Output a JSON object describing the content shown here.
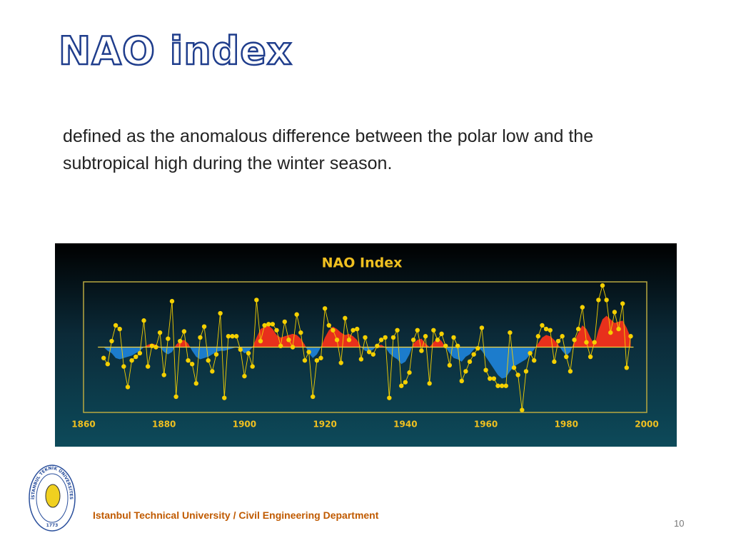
{
  "slide": {
    "title": "NAO index",
    "body": "defined as the anomalous difference between the polar low and the subtropical high during the winter season.",
    "footer": "Istanbul  Technical University  / Civil Engineering Department",
    "page_number": "10",
    "logo": {
      "text": "İSTANBUL TEKNİK ÜNİVERSİTESİ",
      "year": "1773"
    }
  },
  "chart_data": {
    "type": "line",
    "title": "NAO  Index",
    "x": [
      1865,
      1866,
      1867,
      1868,
      1869,
      1870,
      1871,
      1872,
      1873,
      1874,
      1875,
      1876,
      1877,
      1878,
      1879,
      1880,
      1881,
      1882,
      1883,
      1884,
      1885,
      1886,
      1887,
      1888,
      1889,
      1890,
      1891,
      1892,
      1893,
      1894,
      1895,
      1896,
      1897,
      1898,
      1899,
      1900,
      1901,
      1902,
      1903,
      1904,
      1905,
      1906,
      1907,
      1908,
      1909,
      1910,
      1911,
      1912,
      1913,
      1914,
      1915,
      1916,
      1917,
      1918,
      1919,
      1920,
      1921,
      1922,
      1923,
      1924,
      1925,
      1926,
      1927,
      1928,
      1929,
      1930,
      1931,
      1932,
      1933,
      1934,
      1935,
      1936,
      1937,
      1938,
      1939,
      1940,
      1941,
      1942,
      1943,
      1944,
      1945,
      1946,
      1947,
      1948,
      1949,
      1950,
      1951,
      1952,
      1953,
      1954,
      1955,
      1956,
      1957,
      1958,
      1959,
      1960,
      1961,
      1962,
      1963,
      1964,
      1965,
      1966,
      1967,
      1968,
      1969,
      1970,
      1971,
      1972,
      1973,
      1974,
      1975,
      1976,
      1977,
      1978,
      1979,
      1980,
      1981,
      1982,
      1983,
      1984,
      1985,
      1986,
      1987,
      1988,
      1989,
      1990,
      1991,
      1992,
      1993,
      1994,
      1995,
      1996
    ],
    "series": [
      {
        "color": "#f5d000",
        "values": [
          -0.9,
          -1.4,
          0.5,
          1.8,
          1.5,
          -1.6,
          -3.3,
          -1.1,
          -0.8,
          -0.5,
          2.2,
          -1.6,
          0.1,
          0,
          1.2,
          -2.3,
          0.7,
          3.8,
          -4.1,
          0.5,
          1.3,
          -1.1,
          -1.4,
          -3.0,
          0.8,
          1.7,
          -1.1,
          -2.0,
          -0.6,
          2.8,
          -4.2,
          0.9,
          0.9,
          0.9,
          -0.2,
          -2.4,
          -0.5,
          -1.6,
          3.9,
          0.5,
          1.8,
          1.9,
          1.9,
          1.4,
          0.1,
          2.1,
          0.6,
          0,
          2.7,
          1.2,
          -1.1,
          -0.4,
          -4.1,
          -1.1,
          -0.9,
          3.2,
          1.8,
          1.4,
          0.6,
          -1.3,
          2.4,
          0.6,
          1.4,
          1.5,
          -1.0,
          0.8,
          -0.4,
          -0.6,
          0.1,
          0.6,
          0.8,
          -4.2,
          0.8,
          1.4,
          -3.2,
          -2.9,
          -2.1,
          0.6,
          1.4,
          -0.3,
          0.9,
          -3.0,
          1.4,
          0.6,
          1.1,
          0.1,
          -1.5,
          0.8,
          0.1,
          -2.8,
          -2.0,
          -1.2,
          -0.6,
          -0.1,
          1.6,
          -1.9,
          -2.6,
          -2.6,
          -3.2,
          -3.2,
          -3.2,
          1.2,
          -1.7,
          -2.3,
          -5.2,
          -2.0,
          -0.5,
          -1.1,
          0.9,
          1.8,
          1.5,
          1.4,
          -1.2,
          0.5,
          0.9,
          -0.8,
          -2.0,
          0.6,
          1.5,
          3.3,
          0.4,
          -0.8,
          0.4,
          3.9,
          5.1,
          3.9,
          1.2,
          2.9,
          1.5,
          3.6,
          -1.7,
          0.9
        ]
      },
      {
        "color": "#e8301c",
        "negative_color": "#1c7ccc",
        "values": [
          0,
          -0.3,
          -0.5,
          -0.9,
          -1.0,
          -0.9,
          -0.8,
          -0.7,
          -0.5,
          -0.3,
          0,
          0.2,
          0.3,
          0.2,
          0,
          -0.4,
          -0.6,
          -0.4,
          0.2,
          0.5,
          0.6,
          0.3,
          -0.3,
          -0.8,
          -1.0,
          -0.9,
          -0.8,
          -0.6,
          -0.4,
          -0.3,
          -0.3,
          -0.2,
          -0.1,
          0,
          -0.2,
          -0.5,
          -0.4,
          0,
          0.8,
          1.5,
          1.7,
          1.8,
          1.5,
          1.0,
          0.8,
          0.9,
          1.0,
          1.1,
          1.0,
          0.7,
          0.2,
          -0.5,
          -0.9,
          -0.6,
          0,
          0.8,
          1.4,
          1.7,
          1.5,
          1.2,
          1.0,
          1.1,
          0.9,
          0.6,
          0,
          -0.3,
          -0.4,
          -0.2,
          0.1,
          0.2,
          0,
          -0.5,
          -0.8,
          -1.0,
          -1.4,
          -1.2,
          -0.6,
          0.3,
          0.6,
          0.7,
          0.3,
          0,
          0.4,
          0.8,
          0.5,
          0,
          -0.5,
          -0.9,
          -1.0,
          -1.2,
          -0.8,
          -0.6,
          -0.2,
          0,
          -0.3,
          -0.8,
          -1.3,
          -1.8,
          -2.3,
          -2.6,
          -2.5,
          -2.0,
          -1.6,
          -1.4,
          -1.2,
          -1.0,
          -0.6,
          -0.2,
          0.3,
          0.8,
          1.0,
          0.9,
          0.6,
          0.2,
          -0.3,
          -0.7,
          -0.4,
          0.5,
          1.2,
          1.8,
          1.5,
          0.8,
          0.2,
          1.4,
          2.3,
          2.6,
          2.3,
          2.0,
          2.1,
          2.2,
          1.6,
          0.8
        ]
      }
    ],
    "xlim": [
      1860,
      2000
    ],
    "xticks": [
      1860,
      1880,
      1900,
      1920,
      1940,
      1960,
      1980,
      2000
    ],
    "ylim": [
      -5.4,
      5.4
    ]
  }
}
